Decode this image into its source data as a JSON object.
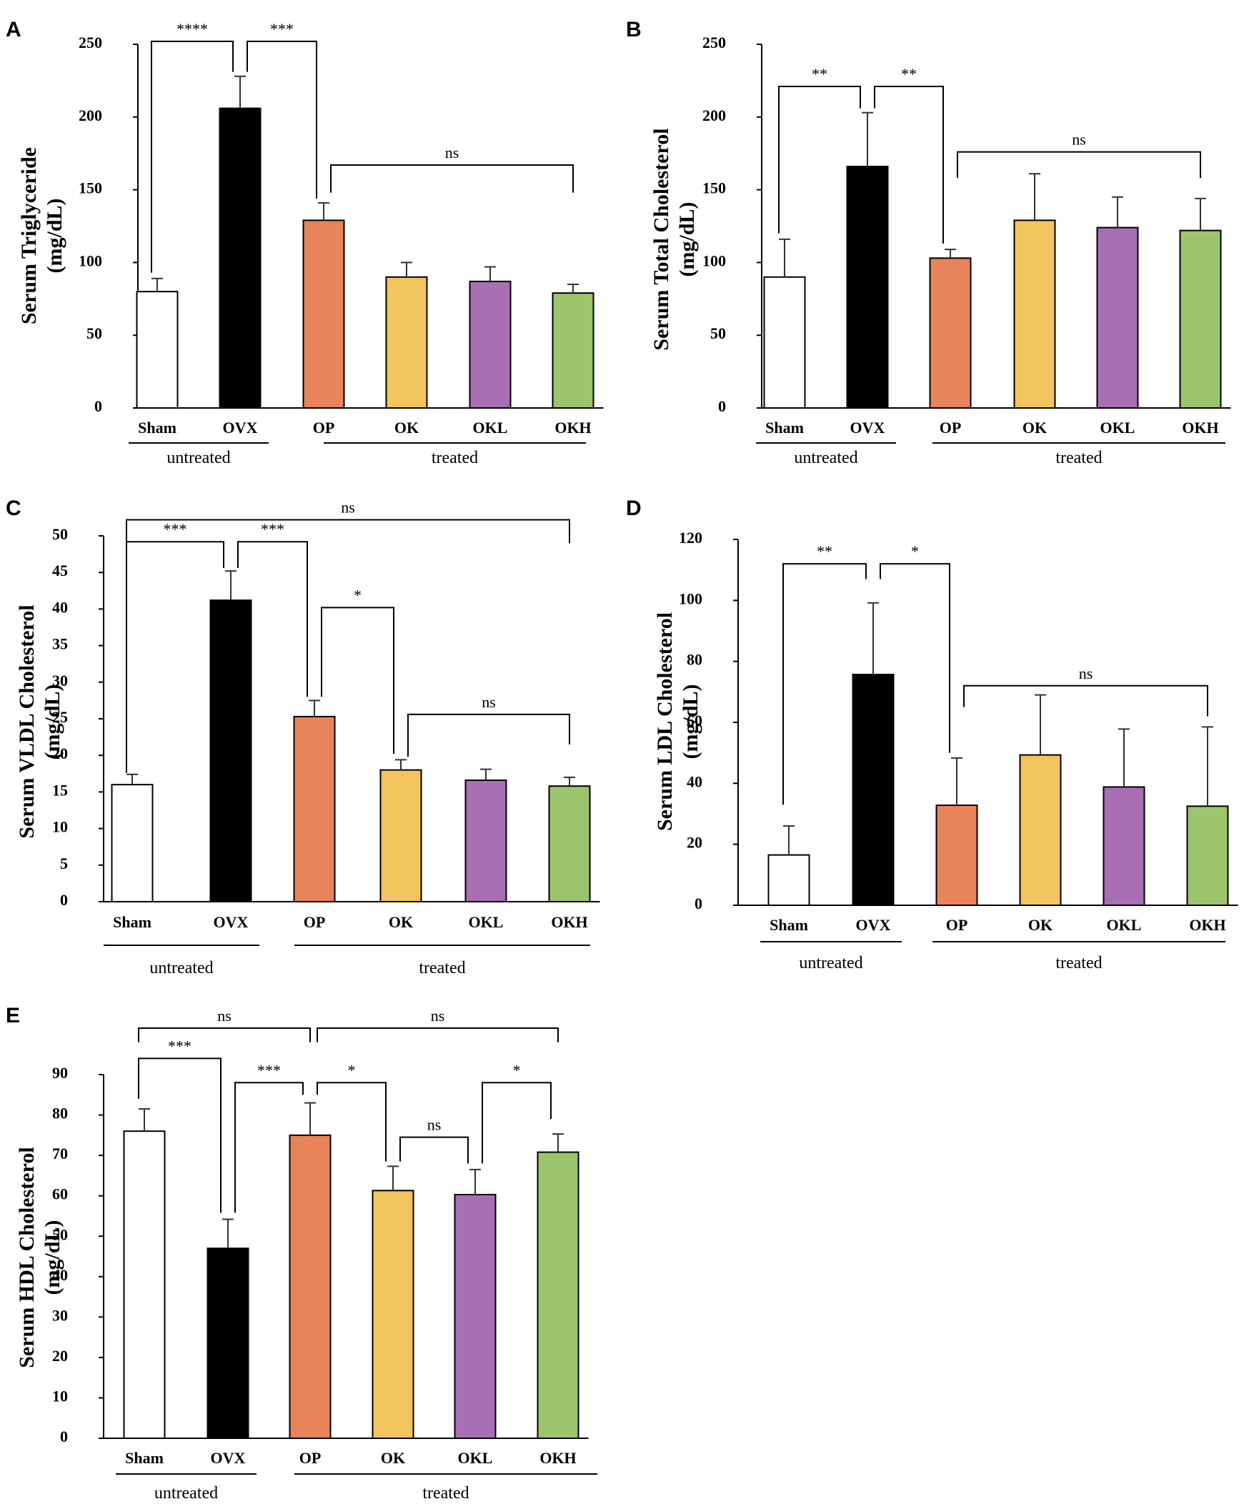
{
  "colors": {
    "Sham": "#ffffff",
    "OVX": "#000000",
    "OP": "#e8845a",
    "OK": "#f2c55f",
    "OKL": "#a86fb5",
    "OKH": "#9cc46d"
  },
  "chart_data": [
    {
      "type": "bar",
      "panel": "A",
      "ylabel": "Serum Triglyceride",
      "yunit": "(mg/dL)",
      "ylim": [
        0,
        250
      ],
      "ytick_step": 50,
      "ytick_labels": [
        "0",
        "50",
        "100",
        "150",
        "200",
        "250"
      ],
      "categories": [
        "Sham",
        "OVX",
        "OP",
        "OK",
        "OKL",
        "OKH"
      ],
      "values": [
        80,
        206,
        129,
        90,
        87,
        79
      ],
      "errors": [
        9,
        22,
        12,
        10,
        10,
        6
      ],
      "groups": [
        {
          "label": "untreated",
          "from": 0,
          "to": 1
        },
        {
          "label": "treated",
          "from": 2,
          "to": 5
        }
      ],
      "annotations": [
        {
          "from": 0,
          "to": 1,
          "label": "****",
          "level": 252,
          "endLevel": [
            93,
            231
          ]
        },
        {
          "from": 1,
          "to": 2,
          "label": "***",
          "level": 252,
          "endLevel": [
            231,
            144
          ]
        },
        {
          "from": 2,
          "to": 5,
          "label": "ns",
          "level": 167,
          "endLevel": [
            148,
            148
          ]
        }
      ]
    },
    {
      "type": "bar",
      "panel": "B",
      "ylabel": "Serum Total Cholesterol",
      "yunit": "(mg/dL)",
      "ylim": [
        0,
        250
      ],
      "ytick_step": 50,
      "ytick_labels": [
        "0",
        "50",
        "100",
        "150",
        "200",
        "250"
      ],
      "categories": [
        "Sham",
        "OVX",
        "OP",
        "OK",
        "OKL",
        "OKH"
      ],
      "values": [
        90,
        166,
        103,
        129,
        124,
        122
      ],
      "errors": [
        26,
        37,
        6,
        32,
        21,
        22
      ],
      "groups": [
        {
          "label": "untreated",
          "from": 0,
          "to": 1
        },
        {
          "label": "treated",
          "from": 2,
          "to": 5
        }
      ],
      "annotations": [
        {
          "from": 0,
          "to": 1,
          "label": "**",
          "level": 221,
          "endLevel": [
            120,
            206
          ]
        },
        {
          "from": 1,
          "to": 2,
          "label": "**",
          "level": 221,
          "endLevel": [
            206,
            113
          ]
        },
        {
          "from": 2,
          "to": 5,
          "label": "ns",
          "level": 176,
          "endLevel": [
            158,
            158
          ]
        }
      ]
    },
    {
      "type": "bar",
      "panel": "C",
      "ylabel": "Serum VLDL Cholesterol",
      "yunit": "(mg/dL)",
      "ylim": [
        0,
        50
      ],
      "ytick_step": 5,
      "ytick_labels": [
        "0",
        "5",
        "10",
        "15",
        "20",
        "25",
        "30",
        "35",
        "40",
        "45",
        "50"
      ],
      "categories": [
        "Sham",
        "OVX",
        "OP",
        "OK",
        "OKL",
        "OKH"
      ],
      "values": [
        16,
        41.2,
        25.3,
        18,
        16.6,
        15.8
      ],
      "errors": [
        1.4,
        4,
        2.2,
        1.4,
        1.5,
        1.2
      ],
      "groups": [
        {
          "label": "untreated",
          "from": 0,
          "to": 1
        },
        {
          "label": "treated",
          "from": 2,
          "to": 5
        }
      ],
      "annotations": [
        {
          "from": 0,
          "to": 5,
          "label": "ns",
          "level": 52.2,
          "endLevel": [
            49,
            49
          ]
        },
        {
          "from": 0,
          "to": 1,
          "label": "***",
          "level": 49.2,
          "endLevel": [
            17.6,
            45.6
          ]
        },
        {
          "from": 1,
          "to": 2,
          "label": "***",
          "level": 49.2,
          "endLevel": [
            45.6,
            28
          ]
        },
        {
          "from": 2,
          "to": 3,
          "label": "*",
          "level": 40.2,
          "endLevel": [
            28,
            20.2
          ]
        },
        {
          "from": 3,
          "to": 5,
          "label": "ns",
          "level": 25.6,
          "endLevel": [
            19.8,
            21.5
          ]
        }
      ]
    },
    {
      "type": "bar",
      "panel": "D",
      "ylabel": "Serum LDL Cholesterol",
      "yunit": "(mg/dL)",
      "ylim": [
        0,
        120
      ],
      "ytick_step": 20,
      "ytick_labels": [
        "0",
        "20",
        "40",
        "60",
        "80",
        "100",
        "120"
      ],
      "categories": [
        "Sham",
        "OVX",
        "OP",
        "OK",
        "OKL",
        "OKH"
      ],
      "values": [
        16.5,
        75.7,
        32.8,
        49.3,
        38.8,
        32.5
      ],
      "errors": [
        9.5,
        23.5,
        15.5,
        19.7,
        19,
        26
      ],
      "groups": [
        {
          "label": "untreated",
          "from": 0,
          "to": 1
        },
        {
          "label": "treated",
          "from": 2,
          "to": 5
        }
      ],
      "annotations": [
        {
          "from": 0,
          "to": 1,
          "label": "**",
          "level": 112,
          "endLevel": [
            33,
            107
          ]
        },
        {
          "from": 1,
          "to": 2,
          "label": "*",
          "level": 112,
          "endLevel": [
            107,
            50
          ]
        },
        {
          "from": 2,
          "to": 5,
          "label": "ns",
          "level": 72,
          "endLevel": [
            65,
            62
          ]
        }
      ]
    },
    {
      "type": "bar",
      "panel": "E",
      "ylabel": "Serum HDL Cholesterol",
      "yunit": "(mg/dL)",
      "ylim": [
        0,
        90
      ],
      "ytick_step": 10,
      "ytick_labels": [
        "0",
        "10",
        "20",
        "30",
        "40",
        "50",
        "60",
        "70",
        "80",
        "90"
      ],
      "categories": [
        "Sham",
        "OVX",
        "OP",
        "OK",
        "OKL",
        "OKH"
      ],
      "values": [
        76,
        47,
        75,
        61.3,
        60.3,
        70.8
      ],
      "errors": [
        5.5,
        7.2,
        8,
        6,
        6.2,
        4.5
      ],
      "groups": [
        {
          "label": "untreated",
          "from": 0,
          "to": 1
        },
        {
          "label": "treated",
          "from": 2,
          "to": 5
        }
      ],
      "annotations": [
        {
          "from": 0,
          "to": 2,
          "label": "ns",
          "level": 101.5,
          "endLevel": [
            98,
            98
          ]
        },
        {
          "from": 2,
          "to": 5,
          "label": "ns",
          "level": 101.5,
          "endLevel": [
            98,
            98
          ]
        },
        {
          "from": 0,
          "to": 1,
          "label": "***",
          "level": 94,
          "endLevel": [
            84,
            55.8
          ]
        },
        {
          "from": 1,
          "to": 2,
          "label": "***",
          "level": 88,
          "endLevel": [
            55.8,
            85
          ]
        },
        {
          "from": 2,
          "to": 3,
          "label": "*",
          "level": 88,
          "endLevel": [
            85,
            68.5
          ]
        },
        {
          "from": 3,
          "to": 4,
          "label": "ns",
          "level": 74.5,
          "endLevel": [
            68.5,
            68
          ]
        },
        {
          "from": 4,
          "to": 5,
          "label": "*",
          "level": 88,
          "endLevel": [
            68,
            79
          ]
        }
      ]
    }
  ]
}
